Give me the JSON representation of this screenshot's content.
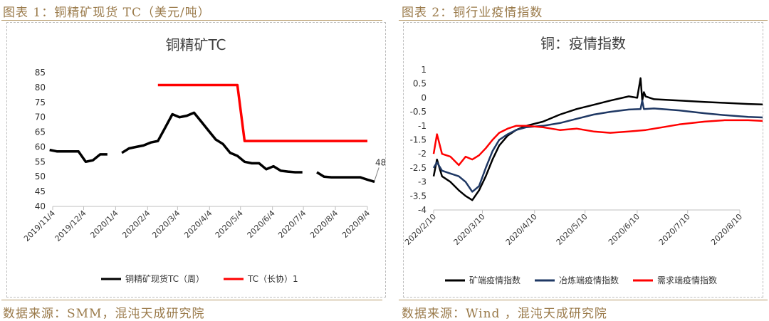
{
  "left": {
    "figure_title": "图表 1：铜精矿现货 TC（美元/吨）",
    "source": "数据来源：SMM，混沌天成研究院"
  },
  "right": {
    "figure_title": "图表 2：铜行业疫情指数",
    "source": "数据来源：Wind ，混沌天成研究院"
  },
  "chart_data": [
    {
      "type": "line",
      "title": "铜精矿TC",
      "ylim": [
        40,
        85
      ],
      "yticks": [
        "40",
        "45",
        "50",
        "55",
        "60",
        "65",
        "70",
        "75",
        "80",
        "85"
      ],
      "xticks": [
        "2019/11/4",
        "2019/12/4",
        "2020/1/4",
        "2020/2/4",
        "2020/3/4",
        "2020/4/4",
        "2020/5/4",
        "2020/6/4",
        "2020/7/4",
        "2020/8/4",
        "2020/9/4"
      ],
      "annotation": "48.28",
      "legend_position": "bottom",
      "series": [
        {
          "name": "铜精矿现货TC（周）",
          "color": "#000000",
          "x": [
            "2019/11/1",
            "2019/11/8",
            "2019/11/15",
            "2019/11/22",
            "2019/11/29",
            "2019/12/6",
            "2019/12/13",
            "2019/12/20",
            "2019/12/27",
            null,
            "2020/1/10",
            "2020/1/17",
            "2020/1/24",
            "2020/1/31",
            "2020/2/7",
            "2020/2/14",
            "2020/2/21",
            "2020/2/28",
            "2020/3/6",
            "2020/3/13",
            "2020/3/20",
            "2020/3/27",
            "2020/4/3",
            "2020/4/10",
            "2020/4/17",
            "2020/4/24",
            "2020/5/1",
            "2020/5/8",
            "2020/5/15",
            "2020/5/22",
            "2020/5/29",
            "2020/6/5",
            "2020/6/12",
            "2020/6/19",
            "2020/6/26",
            "2020/7/3",
            null,
            "2020/7/17",
            "2020/7/24",
            "2020/7/31",
            "2020/8/7",
            "2020/8/14",
            "2020/8/21",
            "2020/8/28",
            "2020/9/4",
            "2020/9/11"
          ],
          "values": [
            59,
            58.5,
            58.5,
            58.5,
            58.5,
            55,
            55.5,
            57.5,
            57.5,
            null,
            58,
            59.5,
            60,
            60.5,
            61.5,
            62,
            66.5,
            71,
            70,
            70.5,
            71.5,
            68.5,
            65.5,
            62.5,
            61,
            58,
            57,
            55,
            54.5,
            54.5,
            52.5,
            53.5,
            52,
            51.7,
            51.5,
            51.5,
            null,
            51.5,
            50,
            49.8,
            49.8,
            49.8,
            49.8,
            49.8,
            49,
            48.28
          ]
        },
        {
          "name": "TC（长协）1",
          "color": "#ff0000",
          "x": [
            "2020/2/14",
            "2020/5/1",
            "2020/5/8",
            "2020/9/4"
          ],
          "values": [
            80.8,
            80.8,
            62,
            62
          ]
        }
      ]
    },
    {
      "type": "line",
      "title": "铜：疫情指数",
      "ylim": [
        -4,
        1
      ],
      "yticks": [
        "1",
        "0.5",
        "0",
        "-0.5",
        "-1",
        "-1.5",
        "-2",
        "-2.5",
        "-3",
        "-3.5",
        "-4"
      ],
      "xticks": [
        "2020/2/10",
        "2020/3/10",
        "2020/4/10",
        "2020/5/10",
        "2020/6/10",
        "2020/7/10",
        "2020/8/10"
      ],
      "legend_position": "bottom",
      "series": [
        {
          "name": "矿端疫情指数",
          "color": "#000000",
          "x": [
            "2020/2/10",
            "2020/2/12",
            "2020/2/15",
            "2020/2/20",
            "2020/2/25",
            "2020/2/29",
            "2020/3/4",
            "2020/3/8",
            "2020/3/12",
            "2020/3/16",
            "2020/3/20",
            "2020/3/25",
            "2020/3/30",
            "2020/4/5",
            "2020/4/15",
            "2020/4/25",
            "2020/5/5",
            "2020/5/15",
            "2020/5/25",
            "2020/6/5",
            "2020/6/10",
            "2020/6/12",
            "2020/6/13",
            "2020/6/14",
            "2020/6/15",
            "2020/6/20",
            "2020/7/5",
            "2020/7/20",
            "2020/8/1",
            "2020/8/15",
            "2020/9/1",
            "2020/9/7"
          ],
          "values": [
            -2.8,
            -2.2,
            -2.8,
            -3.0,
            -3.3,
            -3.5,
            -3.65,
            -3.3,
            -2.8,
            -2.2,
            -1.7,
            -1.35,
            -1.15,
            -1.0,
            -0.85,
            -0.6,
            -0.4,
            -0.25,
            -0.1,
            0.05,
            0.0,
            0.7,
            -0.1,
            0.2,
            0.05,
            -0.05,
            -0.1,
            -0.15,
            -0.18,
            -0.22,
            -0.25,
            -0.28
          ]
        },
        {
          "name": "冶炼端疫情指数",
          "color": "#1f3864",
          "x": [
            "2020/2/10",
            "2020/2/12",
            "2020/2/15",
            "2020/2/20",
            "2020/2/25",
            "2020/2/29",
            "2020/3/4",
            "2020/3/8",
            "2020/3/12",
            "2020/3/16",
            "2020/3/20",
            "2020/3/25",
            "2020/3/30",
            "2020/4/5",
            "2020/4/15",
            "2020/4/25",
            "2020/5/5",
            "2020/5/15",
            "2020/5/25",
            "2020/6/5",
            "2020/6/12",
            "2020/6/13",
            "2020/6/14",
            "2020/6/20",
            "2020/7/5",
            "2020/7/20",
            "2020/8/1",
            "2020/8/15",
            "2020/9/1",
            "2020/9/7"
          ],
          "values": [
            -2.5,
            -2.3,
            -2.6,
            -2.7,
            -2.8,
            -3.0,
            -3.35,
            -3.15,
            -2.5,
            -1.9,
            -1.5,
            -1.3,
            -1.15,
            -1.05,
            -1.0,
            -0.9,
            -0.75,
            -0.6,
            -0.5,
            -0.42,
            -0.4,
            -0.1,
            -0.4,
            -0.38,
            -0.45,
            -0.55,
            -0.62,
            -0.68,
            -0.72,
            -0.78
          ]
        },
        {
          "name": "需求端疫情指数",
          "color": "#ff0000",
          "x": [
            "2020/2/10",
            "2020/2/12",
            "2020/2/15",
            "2020/2/20",
            "2020/2/25",
            "2020/2/29",
            "2020/3/4",
            "2020/3/8",
            "2020/3/12",
            "2020/3/16",
            "2020/3/20",
            "2020/3/25",
            "2020/3/30",
            "2020/4/5",
            "2020/4/15",
            "2020/4/25",
            "2020/5/5",
            "2020/5/15",
            "2020/5/25",
            "2020/6/5",
            "2020/6/15",
            "2020/6/25",
            "2020/7/5",
            "2020/7/20",
            "2020/8/1",
            "2020/8/15",
            "2020/9/1",
            "2020/9/7"
          ],
          "values": [
            -2.0,
            -1.3,
            -2.0,
            -2.1,
            -2.4,
            -2.1,
            -2.2,
            -2.05,
            -1.8,
            -1.5,
            -1.25,
            -1.1,
            -1.0,
            -1.0,
            -1.05,
            -1.15,
            -1.1,
            -1.2,
            -1.25,
            -1.2,
            -1.15,
            -1.05,
            -0.95,
            -0.85,
            -0.8,
            -0.8,
            -0.85,
            -0.95
          ]
        }
      ]
    }
  ]
}
